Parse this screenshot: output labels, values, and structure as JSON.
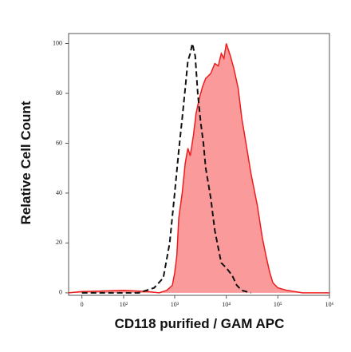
{
  "chart_data": {
    "type": "histogram-overlay",
    "xlabel": "CD118 purified / GAM APC",
    "ylabel": "Relative Cell Count",
    "xscale": "asinh",
    "linear_width": 31.8,
    "xlim": [
      -20,
      1000000
    ],
    "ylim": [
      -1,
      104
    ],
    "xticks": [
      0,
      {
        "value": 100,
        "label": "10²"
      },
      {
        "value": 1000,
        "label": "10³"
      },
      {
        "value": 10000,
        "label": "10⁴"
      },
      {
        "value": 100000,
        "label": "10⁵"
      },
      {
        "value": 1000000,
        "label": "10⁶"
      }
    ],
    "yticks": [
      0,
      20,
      40,
      60,
      80,
      100
    ],
    "series": [
      {
        "color": "#ee1c1c",
        "fill": "#fb9a9a",
        "dash": false,
        "x": [
          -20,
          0,
          100,
          300,
          500,
          700,
          900,
          1000,
          1100,
          1200,
          1400,
          1600,
          1800,
          2000,
          2300,
          2600,
          3000,
          3500,
          4000,
          5000,
          6000,
          7000,
          8000,
          9000,
          10000,
          12000,
          14000,
          17000,
          20000,
          25000,
          30000,
          40000,
          50000,
          60000,
          70000,
          80000,
          100000,
          150000,
          300000,
          1000000
        ],
        "values": [
          0,
          0.5,
          1,
          0.5,
          0,
          1,
          3,
          8,
          15,
          30,
          40,
          52,
          58,
          55,
          63,
          72,
          78,
          83,
          86,
          88,
          92,
          91,
          96,
          94,
          100,
          95,
          90,
          82,
          70,
          58,
          48,
          35,
          22,
          14,
          8,
          4,
          2,
          1,
          0,
          0
        ]
      },
      {
        "color": "#111111",
        "dash": true,
        "x": [
          0,
          200,
          400,
          600,
          800,
          1000,
          1200,
          1400,
          1600,
          1800,
          2000,
          2200,
          2500,
          2800,
          3200,
          3600,
          4000,
          5000,
          6000,
          7000,
          8000,
          10000,
          13000,
          16000,
          20000,
          30000
        ],
        "values": [
          0,
          0,
          2,
          6,
          20,
          40,
          57,
          70,
          82,
          93,
          96,
          100,
          95,
          80,
          68,
          60,
          50,
          38,
          25,
          18,
          12,
          10,
          7,
          3,
          1,
          0
        ]
      }
    ]
  }
}
